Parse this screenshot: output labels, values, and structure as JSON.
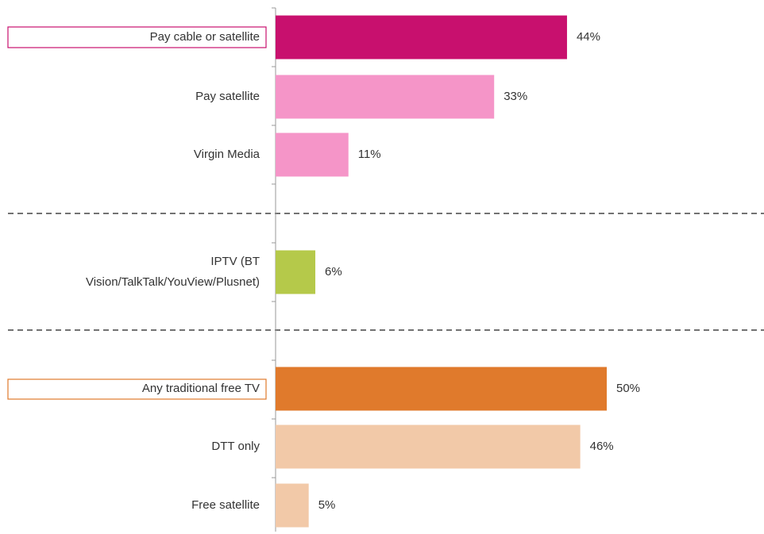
{
  "chart_data": {
    "type": "bar",
    "orientation": "horizontal",
    "categories": [
      "Pay cable or satellite",
      "Pay satellite",
      "Virgin Media",
      "IPTV (BT\nVision/TalkTalk/YouView/Plusnet)",
      "Any traditional free TV",
      "DTT only",
      "Free satellite"
    ],
    "values": [
      44,
      33,
      11,
      6,
      50,
      46,
      5
    ],
    "value_labels": [
      "44%",
      "33%",
      "11%",
      "6%",
      "50%",
      "46%",
      "5%"
    ],
    "colors": [
      "#c8106e",
      "#f595c8",
      "#f595c8",
      "#b5c94a",
      "#e07a2c",
      "#f2c9a8",
      "#f2c9a8"
    ]
  }
}
